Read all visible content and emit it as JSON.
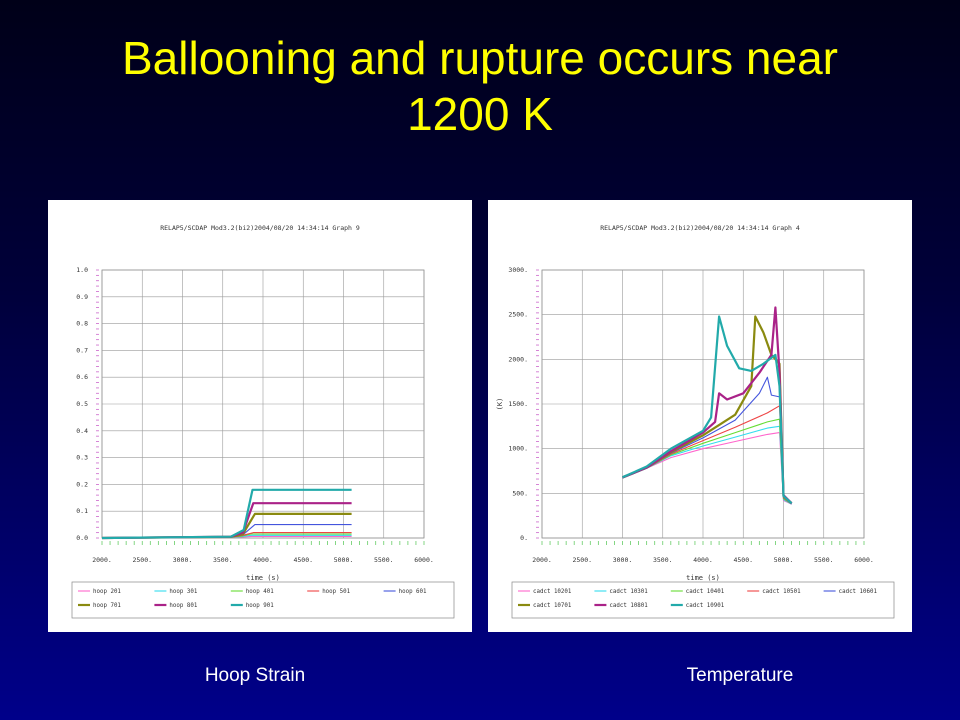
{
  "slide": {
    "title_line1": "Ballooning and rupture occurs near",
    "title_line2": "1200 K",
    "caption_left": "Hoop Strain",
    "caption_right": "Temperature"
  },
  "chart_data": [
    {
      "type": "line",
      "header": "RELAP5/SCDAP Mod3.2(bi2)2004/08/20   14:34:14    Graph   9",
      "xlabel": "time (s)",
      "ylabel": "",
      "xlim": [
        2000,
        6000
      ],
      "ylim": [
        0,
        1.0
      ],
      "xticks": [
        "2000.",
        "2500.",
        "3000.",
        "3500.",
        "4000.",
        "4500.",
        "5000.",
        "5500.",
        "6000."
      ],
      "yticks": [
        "0.0",
        "0.1",
        "0.2",
        "0.3",
        "0.4",
        "0.5",
        "0.6",
        "0.7",
        "0.8",
        "0.9",
        "1.0"
      ],
      "grid": true,
      "legend_position": "bottom",
      "series": [
        {
          "name": "hoop 201",
          "color": "#ff66cc",
          "points": [
            [
              2000,
              0
            ],
            [
              3600,
              0.002
            ],
            [
              3750,
              0.004
            ],
            [
              3850,
              0.006
            ],
            [
              5100,
              0.006
            ]
          ]
        },
        {
          "name": "hoop 301",
          "color": "#33ddee",
          "points": [
            [
              2000,
              0
            ],
            [
              3600,
              0.002
            ],
            [
              3750,
              0.006
            ],
            [
              3850,
              0.01
            ],
            [
              5100,
              0.01
            ]
          ]
        },
        {
          "name": "hoop 401",
          "color": "#66dd33",
          "points": [
            [
              2000,
              0
            ],
            [
              3600,
              0.003
            ],
            [
              3750,
              0.008
            ],
            [
              3850,
              0.015
            ],
            [
              5100,
              0.015
            ]
          ]
        },
        {
          "name": "hoop 501",
          "color": "#ee4444",
          "points": [
            [
              2000,
              0
            ],
            [
              3600,
              0.003
            ],
            [
              3750,
              0.01
            ],
            [
              3880,
              0.02
            ],
            [
              5100,
              0.02
            ]
          ]
        },
        {
          "name": "hoop 601",
          "color": "#4455dd",
          "points": [
            [
              2000,
              0
            ],
            [
              3600,
              0.004
            ],
            [
              3750,
              0.012
            ],
            [
              3900,
              0.05
            ],
            [
              5100,
              0.05
            ]
          ]
        },
        {
          "name": "hoop 701",
          "color": "#8a8a10",
          "points": [
            [
              2000,
              0
            ],
            [
              3600,
              0.004
            ],
            [
              3750,
              0.015
            ],
            [
              3900,
              0.09
            ],
            [
              5100,
              0.09
            ]
          ]
        },
        {
          "name": "hoop 801",
          "color": "#aa2288",
          "points": [
            [
              2000,
              0
            ],
            [
              3600,
              0.005
            ],
            [
              3750,
              0.02
            ],
            [
              3880,
              0.13
            ],
            [
              5100,
              0.13
            ]
          ]
        },
        {
          "name": "hoop 901",
          "color": "#22aaaa",
          "points": [
            [
              2000,
              0
            ],
            [
              3600,
              0.005
            ],
            [
              3760,
              0.03
            ],
            [
              3870,
              0.18
            ],
            [
              5100,
              0.18
            ]
          ]
        }
      ]
    },
    {
      "type": "line",
      "header": "RELAP5/SCDAP Mod3.2(bi2)2004/08/20   14:34:14    Graph   4",
      "xlabel": "time (s)",
      "ylabel": "(K)",
      "xlim": [
        2000,
        6000
      ],
      "ylim": [
        0,
        3000
      ],
      "xticks": [
        "2000.",
        "2500.",
        "3000.",
        "3500.",
        "4000.",
        "4500.",
        "5000.",
        "5500.",
        "6000."
      ],
      "yticks": [
        "0.",
        "500.",
        "1000.",
        "1500.",
        "2000.",
        "2500.",
        "3000."
      ],
      "grid": true,
      "legend_position": "bottom",
      "series": [
        {
          "name": "cadct 10201",
          "color": "#ff66cc",
          "points": [
            [
              3000,
              670
            ],
            [
              3300,
              780
            ],
            [
              3600,
              900
            ],
            [
              4000,
              1000
            ],
            [
              4400,
              1080
            ],
            [
              4800,
              1160
            ],
            [
              4950,
              1180
            ],
            [
              5000,
              420
            ],
            [
              5100,
              380
            ]
          ]
        },
        {
          "name": "cadct 10301",
          "color": "#33ddee",
          "points": [
            [
              3000,
              670
            ],
            [
              3300,
              780
            ],
            [
              3600,
              920
            ],
            [
              4000,
              1030
            ],
            [
              4400,
              1130
            ],
            [
              4800,
              1230
            ],
            [
              4950,
              1250
            ],
            [
              5000,
              430
            ],
            [
              5100,
              380
            ]
          ]
        },
        {
          "name": "cadct 10401",
          "color": "#66dd33",
          "points": [
            [
              3000,
              670
            ],
            [
              3300,
              780
            ],
            [
              3600,
              930
            ],
            [
              4000,
              1060
            ],
            [
              4400,
              1180
            ],
            [
              4800,
              1300
            ],
            [
              4950,
              1330
            ],
            [
              5000,
              440
            ],
            [
              5100,
              380
            ]
          ]
        },
        {
          "name": "cadct 10501",
          "color": "#ee4444",
          "points": [
            [
              3000,
              670
            ],
            [
              3300,
              780
            ],
            [
              3600,
              940
            ],
            [
              4000,
              1090
            ],
            [
              4400,
              1240
            ],
            [
              4800,
              1400
            ],
            [
              4950,
              1480
            ],
            [
              5000,
              450
            ],
            [
              5100,
              380
            ]
          ]
        },
        {
          "name": "cadct 10601",
          "color": "#4455dd",
          "points": [
            [
              3000,
              670
            ],
            [
              3300,
              780
            ],
            [
              3600,
              950
            ],
            [
              4000,
              1120
            ],
            [
              4400,
              1320
            ],
            [
              4700,
              1620
            ],
            [
              4800,
              1800
            ],
            [
              4850,
              1600
            ],
            [
              4950,
              1580
            ],
            [
              5000,
              460
            ],
            [
              5100,
              380
            ]
          ]
        },
        {
          "name": "cadct 10701",
          "color": "#8a8a10",
          "points": [
            [
              3000,
              680
            ],
            [
              3300,
              790
            ],
            [
              3600,
              960
            ],
            [
              4000,
              1150
            ],
            [
              4400,
              1380
            ],
            [
              4600,
              1700
            ],
            [
              4650,
              2480
            ],
            [
              4750,
              2300
            ],
            [
              4850,
              2050
            ],
            [
              4950,
              1950
            ],
            [
              5000,
              470
            ],
            [
              5100,
              390
            ]
          ]
        },
        {
          "name": "cadct 10801",
          "color": "#aa2288",
          "points": [
            [
              3000,
              680
            ],
            [
              3300,
              790
            ],
            [
              3600,
              970
            ],
            [
              4000,
              1180
            ],
            [
              4150,
              1300
            ],
            [
              4200,
              1620
            ],
            [
              4300,
              1550
            ],
            [
              4500,
              1620
            ],
            [
              4700,
              1850
            ],
            [
              4850,
              2050
            ],
            [
              4900,
              2580
            ],
            [
              4950,
              1850
            ],
            [
              5000,
              480
            ],
            [
              5100,
              390
            ]
          ]
        },
        {
          "name": "cadct 10901",
          "color": "#22aaaa",
          "points": [
            [
              3000,
              680
            ],
            [
              3300,
              800
            ],
            [
              3600,
              1000
            ],
            [
              4000,
              1200
            ],
            [
              4100,
              1350
            ],
            [
              4200,
              2480
            ],
            [
              4300,
              2150
            ],
            [
              4450,
              1900
            ],
            [
              4600,
              1870
            ],
            [
              4750,
              1950
            ],
            [
              4900,
              2050
            ],
            [
              4950,
              1700
            ],
            [
              5000,
              470
            ],
            [
              5100,
              390
            ]
          ]
        }
      ]
    }
  ]
}
